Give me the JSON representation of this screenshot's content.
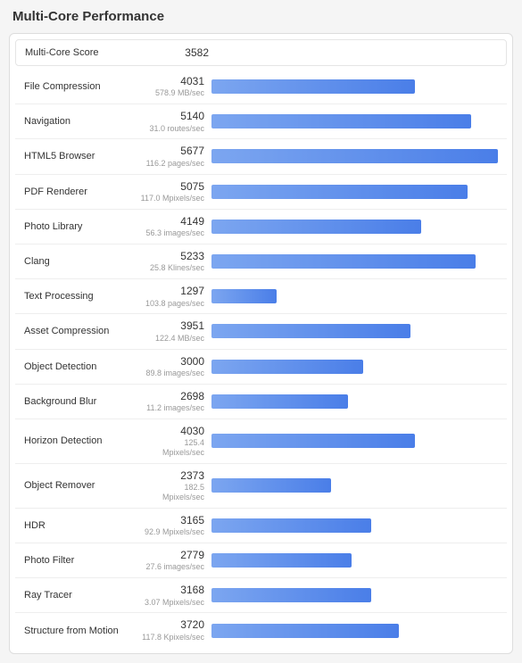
{
  "title": "Multi-Core Performance",
  "overall": {
    "label": "Multi-Core Score",
    "score": 3582
  },
  "bar": {
    "gradient_start": "#7ca6f0",
    "gradient_end": "#4a7ee8",
    "max_value": 5677
  },
  "rows": [
    {
      "name": "File Compression",
      "score": 4031,
      "sub": "578.9 MB/sec"
    },
    {
      "name": "Navigation",
      "score": 5140,
      "sub": "31.0 routes/sec"
    },
    {
      "name": "HTML5 Browser",
      "score": 5677,
      "sub": "116.2 pages/sec"
    },
    {
      "name": "PDF Renderer",
      "score": 5075,
      "sub": "117.0 Mpixels/sec"
    },
    {
      "name": "Photo Library",
      "score": 4149,
      "sub": "56.3 images/sec"
    },
    {
      "name": "Clang",
      "score": 5233,
      "sub": "25.8 Klines/sec"
    },
    {
      "name": "Text Processing",
      "score": 1297,
      "sub": "103.8 pages/sec"
    },
    {
      "name": "Asset Compression",
      "score": 3951,
      "sub": "122.4 MB/sec"
    },
    {
      "name": "Object Detection",
      "score": 3000,
      "sub": "89.8 images/sec"
    },
    {
      "name": "Background Blur",
      "score": 2698,
      "sub": "11.2 images/sec"
    },
    {
      "name": "Horizon Detection",
      "score": 4030,
      "sub": "125.4 Mpixels/sec"
    },
    {
      "name": "Object Remover",
      "score": 2373,
      "sub": "182.5 Mpixels/sec"
    },
    {
      "name": "HDR",
      "score": 3165,
      "sub": "92.9 Mpixels/sec"
    },
    {
      "name": "Photo Filter",
      "score": 2779,
      "sub": "27.6 images/sec"
    },
    {
      "name": "Ray Tracer",
      "score": 3168,
      "sub": "3.07 Mpixels/sec"
    },
    {
      "name": "Structure from Motion",
      "score": 3720,
      "sub": "117.8 Kpixels/sec"
    }
  ]
}
